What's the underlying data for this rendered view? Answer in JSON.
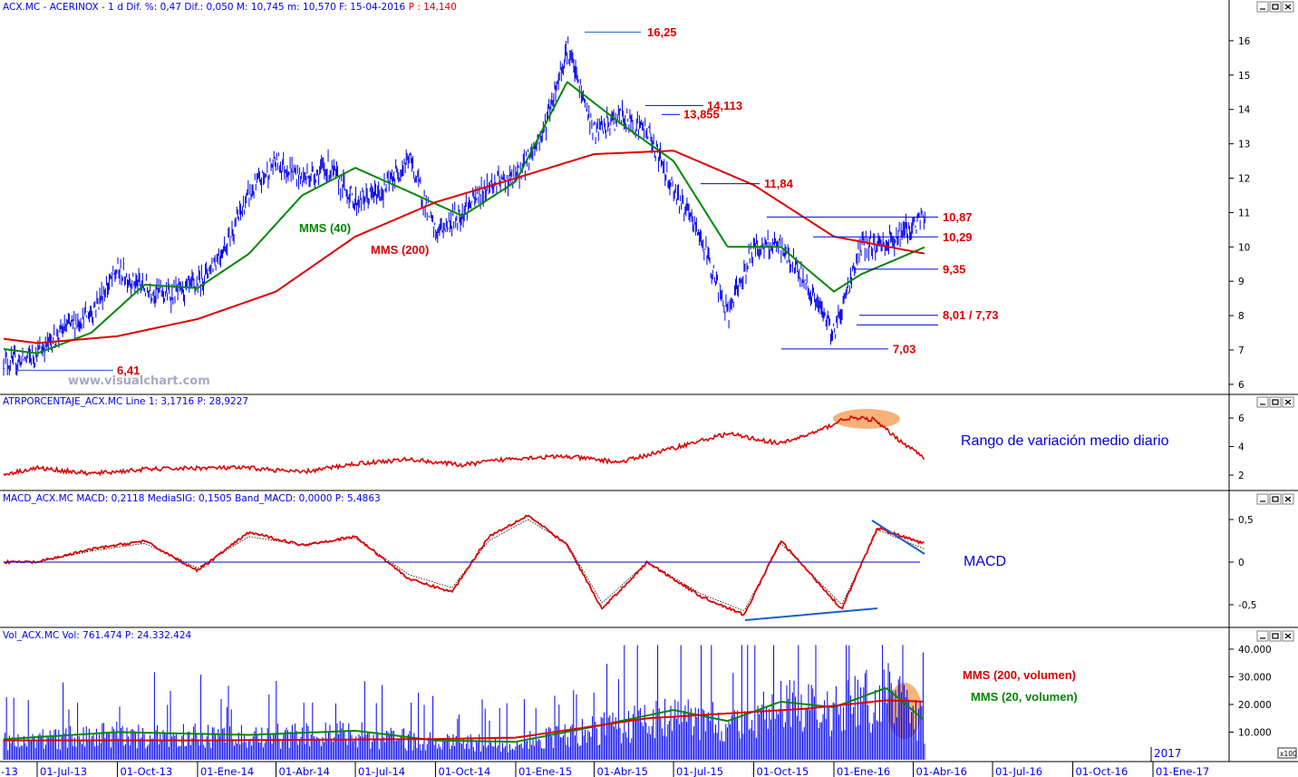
{
  "colors": {
    "price": "#0000ee",
    "mms40": "#008800",
    "mms200": "#dd0000",
    "annotation": "#dd0000",
    "trendline": "#1a5fcc",
    "highlight": "#f4a460",
    "axis": "#0000ee",
    "volume": "#0000ee"
  },
  "panels": {
    "price": {
      "title": "ACX.MC - ACERINOX - 1 d Dif. %: 0,47 Dif.: 0,050 M: 10,745 m: 10,570 F: 15-04-2016",
      "title_p": "P : 14,140"
    },
    "atr": {
      "title": "ATRPORCENTAJE_ACX.MC Line 1: 3,1716 P: 28,9227"
    },
    "macd": {
      "title": "MACD_ACX.MC MACD: 0,2118 MediaSIG: 0,1505 Band_MACD: 0,0000 P: 5,4863"
    },
    "volume": {
      "title": "Vol_ACX.MC Vol: 761.474 P: 24.332.424"
    }
  },
  "annotations": {
    "mms40_label": "MMS (40)",
    "mms200_label": "MMS (200)",
    "atr_text": "Rango de variación medio diario",
    "macd_text": "MACD",
    "vol200_label": "MMS (200, volumen)",
    "vol20_label": "MMS (20, volumen)",
    "watermark": "www.visualchart.com",
    "year_box": "2017",
    "scale_box": "x100"
  },
  "chart_data": [
    {
      "type": "line",
      "panel": "price",
      "title": "ACX.MC - ACERINOX - 1 d",
      "x": [
        "01-Jul-13",
        "01-Oct-13",
        "01-Ene-14",
        "01-Abr-14",
        "01-Jul-14",
        "01-Oct-14",
        "01-Ene-15",
        "01-Abr-15",
        "01-Jul-15",
        "01-Oct-15",
        "01-Ene-16",
        "01-Abr-16",
        "01-Jul-16",
        "01-Oct-16",
        "01-Ene-17"
      ],
      "x_ticks": [
        "-13",
        "01-Jul-13",
        "01-Oct-13",
        "01-Ene-14",
        "01-Abr-14",
        "01-Jul-14",
        "01-Oct-14",
        "01-Ene-15",
        "01-Abr-15",
        "01-Jul-15",
        "01-Oct-15",
        "01-Ene-16",
        "01-Abr-16",
        "01-Jul-16",
        "01-Oct-16",
        "01-Ene-17"
      ],
      "ylim": [
        5.8,
        16.5
      ],
      "y_ticks": [
        6,
        7,
        8,
        9,
        10,
        11,
        12,
        13,
        14,
        15,
        16
      ],
      "series": [
        {
          "name": "ACX.MC",
          "x": [
            "2013-05-01",
            "2013-06-01",
            "2013-07-01",
            "2013-08-01",
            "2013-09-01",
            "2013-10-01",
            "2013-11-01",
            "2013-12-01",
            "2014-01-01",
            "2014-02-01",
            "2014-03-01",
            "2014-04-01",
            "2014-05-01",
            "2014-06-01",
            "2014-07-01",
            "2014-08-01",
            "2014-09-01",
            "2014-10-01",
            "2014-11-01",
            "2014-12-01",
            "2015-01-01",
            "2015-02-01",
            "2015-03-01",
            "2015-04-01",
            "2015-05-01",
            "2015-06-01",
            "2015-07-01",
            "2015-08-01",
            "2015-09-01",
            "2015-10-01",
            "2015-11-01",
            "2015-12-01",
            "2016-01-01",
            "2016-02-01",
            "2016-03-01",
            "2016-04-15"
          ],
          "values": [
            7.1,
            6.6,
            6.9,
            7.6,
            8.1,
            9.3,
            8.8,
            8.6,
            8.9,
            10.0,
            11.5,
            12.5,
            12.0,
            12.3,
            11.3,
            11.6,
            12.6,
            10.4,
            11.0,
            11.8,
            12.0,
            13.3,
            15.8,
            13.3,
            13.8,
            13.4,
            11.7,
            10.3,
            8.0,
            10.0,
            10.0,
            8.9,
            7.5,
            10.0,
            10.1,
            10.87
          ]
        },
        {
          "name": "MMS (40)",
          "x": [
            "2013-05-01",
            "2013-07-01",
            "2013-09-01",
            "2013-11-01",
            "2014-01-01",
            "2014-03-01",
            "2014-05-01",
            "2014-07-01",
            "2014-09-01",
            "2014-11-01",
            "2015-01-01",
            "2015-03-01",
            "2015-05-01",
            "2015-07-01",
            "2015-09-01",
            "2015-11-01",
            "2016-01-01",
            "2016-02-01",
            "2016-04-15"
          ],
          "values": [
            7.1,
            6.9,
            7.5,
            8.9,
            8.8,
            9.8,
            11.5,
            12.3,
            11.6,
            10.9,
            11.9,
            14.8,
            13.6,
            12.5,
            10.0,
            10.0,
            8.7,
            9.2,
            10.0
          ]
        },
        {
          "name": "MMS (200)",
          "x": [
            "2013-05-01",
            "2013-07-01",
            "2013-10-01",
            "2014-01-01",
            "2014-04-01",
            "2014-07-01",
            "2014-10-01",
            "2015-01-01",
            "2015-04-01",
            "2015-07-01",
            "2015-10-01",
            "2016-01-01",
            "2016-04-15"
          ],
          "values": [
            7.4,
            7.2,
            7.4,
            7.9,
            8.7,
            10.3,
            11.3,
            12.0,
            12.7,
            12.8,
            11.8,
            10.3,
            9.8
          ]
        }
      ],
      "levels": [
        16.25,
        14.113,
        13.855,
        11.84,
        10.87,
        10.29,
        9.35,
        8.01,
        7.73,
        7.03,
        6.41
      ],
      "level_labels": [
        "16,25",
        "14,113",
        "13,855",
        "11,84",
        "10,87",
        "10,29",
        "9,35",
        "8,01 / 7,73",
        "7,03",
        "6,41"
      ]
    },
    {
      "type": "line",
      "panel": "atr",
      "title": "ATRPORCENTAJE_ACX.MC",
      "ylim": [
        1.2,
        6.8
      ],
      "y_ticks": [
        2,
        4,
        6
      ],
      "series": [
        {
          "name": "Line 1",
          "x": [
            "2013-05-01",
            "2013-07-01",
            "2013-09-01",
            "2013-11-01",
            "2014-01-01",
            "2014-03-01",
            "2014-05-01",
            "2014-07-01",
            "2014-09-01",
            "2014-11-01",
            "2015-01-01",
            "2015-03-01",
            "2015-05-01",
            "2015-07-01",
            "2015-09-01",
            "2015-11-01",
            "2015-12-15",
            "2016-01-15",
            "2016-02-15",
            "2016-03-15",
            "2016-04-15"
          ],
          "values": [
            1.8,
            2.5,
            2.1,
            2.4,
            2.5,
            2.5,
            2.2,
            2.8,
            3.1,
            2.7,
            3.2,
            3.3,
            2.9,
            3.9,
            4.9,
            4.2,
            5.1,
            6.0,
            5.9,
            4.5,
            3.17
          ]
        }
      ]
    },
    {
      "type": "line",
      "panel": "macd",
      "title": "MACD_ACX.MC",
      "ylim": [
        -0.78,
        0.62
      ],
      "y_ticks": [
        0.5,
        0,
        -0.5
      ],
      "y_tick_labels": [
        "0,5",
        "0",
        "-0,5"
      ],
      "series": [
        {
          "name": "MACD",
          "x": [
            "2013-05-01",
            "2013-07-01",
            "2013-09-01",
            "2013-11-01",
            "2014-01-01",
            "2014-03-01",
            "2014-05-01",
            "2014-07-01",
            "2014-09-01",
            "2014-10-20",
            "2014-12-01",
            "2015-01-15",
            "2015-03-01",
            "2015-04-10",
            "2015-06-01",
            "2015-08-01",
            "2015-09-20",
            "2015-11-01",
            "2016-01-10",
            "2016-02-20",
            "2016-04-15"
          ],
          "values": [
            0.0,
            0.0,
            0.15,
            0.25,
            -0.1,
            0.35,
            0.2,
            0.3,
            -0.2,
            -0.35,
            0.3,
            0.55,
            0.2,
            -0.55,
            0.0,
            -0.4,
            -0.62,
            0.25,
            -0.55,
            0.4,
            0.21
          ]
        },
        {
          "name": "MediaSIG",
          "x": [
            "2013-05-01",
            "2013-07-01",
            "2013-09-01",
            "2013-11-01",
            "2014-01-01",
            "2014-03-01",
            "2014-05-01",
            "2014-07-01",
            "2014-09-01",
            "2014-10-20",
            "2014-12-01",
            "2015-01-15",
            "2015-03-01",
            "2015-04-10",
            "2015-06-01",
            "2015-08-01",
            "2015-09-20",
            "2015-11-01",
            "2016-01-10",
            "2016-02-20",
            "2016-04-15"
          ],
          "values": [
            0.0,
            0.0,
            0.13,
            0.22,
            -0.07,
            0.3,
            0.2,
            0.28,
            -0.15,
            -0.3,
            0.25,
            0.5,
            0.22,
            -0.48,
            0.0,
            -0.37,
            -0.57,
            0.22,
            -0.5,
            0.38,
            0.15
          ]
        }
      ]
    },
    {
      "type": "bar",
      "panel": "volume",
      "title": "Vol_ACX.MC",
      "ylim": [
        0,
        42000
      ],
      "y_ticks": [
        10000,
        20000,
        30000,
        40000
      ],
      "y_tick_labels": [
        "10.000",
        "20.000",
        "30.000",
        "40.000"
      ],
      "series": [
        {
          "name": "MMS (200, volumen)",
          "x": [
            "2013-05-01",
            "2014-01-01",
            "2014-10-01",
            "2015-01-01",
            "2015-06-01",
            "2015-12-01",
            "2016-03-01",
            "2016-04-15"
          ],
          "values": [
            7000,
            7000,
            7500,
            8000,
            15000,
            18500,
            21500,
            21000
          ]
        },
        {
          "name": "MMS (20, volumen)",
          "x": [
            "2013-05-01",
            "2013-10-01",
            "2014-03-01",
            "2014-07-01",
            "2014-10-01",
            "2015-01-01",
            "2015-04-01",
            "2015-07-01",
            "2015-09-01",
            "2015-11-01",
            "2016-01-01",
            "2016-03-01",
            "2016-04-15"
          ],
          "values": [
            7000,
            10000,
            9000,
            10500,
            7000,
            6500,
            12000,
            18000,
            14000,
            21000,
            19000,
            26000,
            14000
          ]
        }
      ]
    }
  ]
}
